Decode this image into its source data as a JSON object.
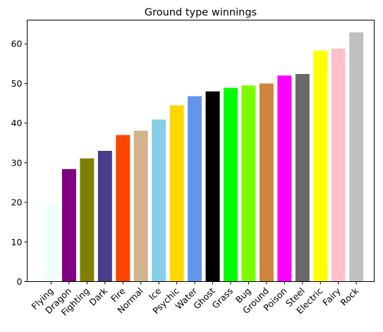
{
  "chart_data": {
    "type": "bar",
    "title": "Ground type winnings",
    "xlabel": "",
    "ylabel": "",
    "categories": [
      "Flying",
      "Dragon",
      "Fighting",
      "Dark",
      "Fire",
      "Normal",
      "Ice",
      "Psychic",
      "Water",
      "Ghost",
      "Grass",
      "Bug",
      "Ground",
      "Poison",
      "Steel",
      "Electric",
      "Fairy",
      "Rock"
    ],
    "values": [
      19.6,
      28.4,
      31.1,
      33.0,
      37.0,
      38.1,
      40.9,
      44.5,
      46.8,
      48.0,
      48.9,
      49.5,
      50.0,
      52.0,
      52.4,
      58.3,
      58.8,
      62.9
    ],
    "colors": [
      "#F0FFFF",
      "#800080",
      "#808000",
      "#483D8B",
      "#FF4500",
      "#D2B48C",
      "#87CEEB",
      "#FFD700",
      "#6495ED",
      "#000000",
      "#00FF00",
      "#7CFC00",
      "#CD853F",
      "#FF00FF",
      "#696969",
      "#FFFF00",
      "#FFC0CB",
      "#C0C0C0"
    ],
    "ylim": [
      0,
      66
    ],
    "yticks": [
      0,
      10,
      20,
      30,
      40,
      50,
      60
    ],
    "grid": false,
    "xtick_rotation": 45
  }
}
